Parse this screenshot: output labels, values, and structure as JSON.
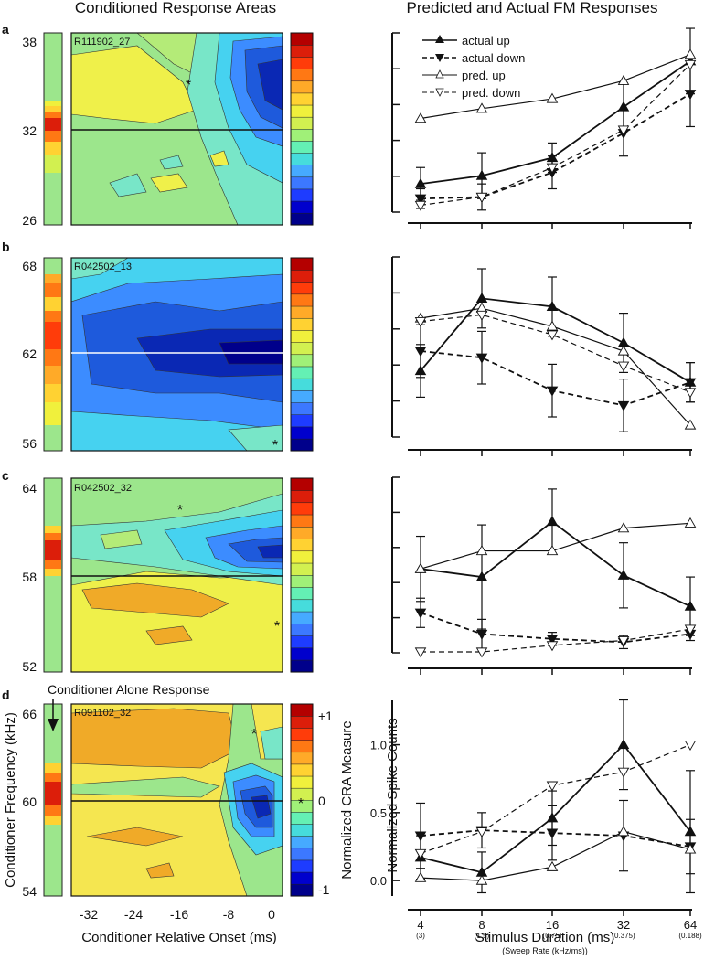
{
  "titles": {
    "left": "Conditioned Response Areas",
    "right": "Predicted and Actual FM Responses"
  },
  "colors": {
    "cmap": [
      "#00008b",
      "#0000cd",
      "#1e3cff",
      "#3c78ff",
      "#46aaff",
      "#46dcdc",
      "#64f0b4",
      "#a0f078",
      "#d2f050",
      "#f0f03c",
      "#ffd232",
      "#ffaa28",
      "#ff7814",
      "#ff3c0a",
      "#dc1e0a",
      "#b40000"
    ],
    "fills": {
      "light_green": "#9ce68c",
      "aqua": "#78e6c8",
      "cyan": "#46d2f0",
      "blue": "#3c8cff",
      "blue2": "#1e5adc",
      "blue3": "#0a28b4",
      "yellow": "#eff04a",
      "yellow2": "#f5e650",
      "orange": "#f0aa28",
      "green2": "#b4eb78"
    }
  },
  "panels": [
    {
      "letter": "a",
      "unit": "R111902_27",
      "y_ticks": [
        "38",
        "32",
        "26"
      ],
      "line": "32"
    },
    {
      "letter": "b",
      "unit": "R042502_13",
      "y_ticks": [
        "68",
        "62",
        "56"
      ],
      "line": "62"
    },
    {
      "letter": "c",
      "unit": "R042502_32",
      "y_ticks": [
        "64",
        "58",
        "52"
      ],
      "line": "58"
    },
    {
      "letter": "d",
      "unit": "R091102_32",
      "y_ticks": [
        "66",
        "60",
        "54"
      ],
      "line": "60"
    }
  ],
  "panel_d": {
    "annotation": "Conditioner Alone Response",
    "ylabel": "Conditioner Frequency (kHz)",
    "xlabel": "Conditioner Relative Onset (ms)",
    "x_ticks": [
      "-32",
      "-24",
      "-16",
      "-8",
      "0"
    ],
    "cbar_label": "Normalized CRA Measure",
    "cbar_ticks": [
      "+1",
      "0",
      "-1"
    ],
    "asterisk": "*"
  },
  "legend": {
    "entries": [
      "actual up",
      "actual down",
      "pred. up",
      "pred. down"
    ]
  },
  "chart_data": [
    {
      "type": "line",
      "panel": "a",
      "title": "Predicted and Actual FM Responses",
      "x": [
        4,
        8,
        16,
        32,
        64
      ],
      "ylim": [
        0,
        1.05
      ],
      "series": [
        {
          "name": "actual up",
          "values": [
            0.15,
            0.2,
            0.31,
            0.62,
            0.9
          ],
          "err": [
            0.1,
            0.14,
            0.09,
            0.14,
            0.2
          ]
        },
        {
          "name": "actual down",
          "values": [
            0.06,
            0.07,
            0.22,
            0.46,
            0.7
          ],
          "err": [
            0.06,
            0.08,
            0.1,
            0.14,
            0.2
          ]
        },
        {
          "name": "pred. up",
          "values": [
            0.55,
            0.61,
            0.67,
            0.78,
            0.94
          ],
          "err": [
            0,
            0,
            0,
            0,
            0
          ]
        },
        {
          "name": "pred. down",
          "values": [
            0.02,
            0.07,
            0.25,
            0.48,
            0.88
          ],
          "err": [
            0,
            0,
            0,
            0,
            0
          ]
        }
      ]
    },
    {
      "type": "line",
      "panel": "b",
      "x": [
        4,
        8,
        16,
        32,
        64
      ],
      "ylim": [
        0,
        1.05
      ],
      "series": [
        {
          "name": "actual up",
          "values": [
            0.38,
            0.82,
            0.77,
            0.55,
            0.31
          ],
          "err": [
            0.16,
            0.18,
            0.18,
            0.18,
            0.12
          ]
        },
        {
          "name": "actual down",
          "values": [
            0.5,
            0.46,
            0.26,
            0.17,
            0.31
          ],
          "err": [
            0.16,
            0.16,
            0.16,
            0.16,
            0.12
          ]
        },
        {
          "name": "pred. up",
          "values": [
            0.7,
            0.76,
            0.65,
            0.5,
            0.05
          ],
          "err": [
            0,
            0,
            0,
            0,
            0
          ]
        },
        {
          "name": "pred. down",
          "values": [
            0.68,
            0.72,
            0.6,
            0.41,
            0.25
          ],
          "err": [
            0,
            0,
            0,
            0,
            0
          ]
        }
      ]
    },
    {
      "type": "line",
      "panel": "c",
      "x": [
        4,
        8,
        16,
        32,
        64
      ],
      "ylim": [
        0,
        1.05
      ],
      "series": [
        {
          "name": "actual up",
          "values": [
            0.51,
            0.46,
            0.8,
            0.47,
            0.28
          ],
          "err": [
            0.2,
            0.32,
            0.2,
            0.2,
            0.18
          ]
        },
        {
          "name": "actual down",
          "values": [
            0.24,
            0.11,
            0.08,
            0.06,
            0.11
          ],
          "err": [
            0.09,
            0.09,
            0.04,
            0.04,
            0.04
          ]
        },
        {
          "name": "pred. up",
          "values": [
            0.51,
            0.62,
            0.62,
            0.76,
            0.79
          ],
          "err": [
            0,
            0,
            0,
            0,
            0
          ]
        },
        {
          "name": "pred. down",
          "values": [
            0,
            0,
            0.04,
            0.07,
            0.14
          ],
          "err": [
            0,
            0,
            0,
            0,
            0
          ]
        }
      ]
    },
    {
      "type": "line",
      "panel": "d",
      "xlabel": "Stimulus Duration (ms)",
      "xlabel2": "(Sweep Rate (kHz/ms))",
      "ylabel": "Normalized Spike Counts",
      "x": [
        4,
        8,
        16,
        32,
        64
      ],
      "x_tick_labels": [
        "4",
        "8",
        "16",
        "32",
        "64"
      ],
      "x_sub_labels": [
        "(3)",
        "(1.5)",
        "(0.75)",
        "(0.375)",
        "(0.188)"
      ],
      "y_ticks": [
        0.0,
        0.5,
        1.0
      ],
      "y_tick_labels": [
        "0.0",
        "0.5",
        "1.0"
      ],
      "ylim": [
        -0.08,
        1.3
      ],
      "series": [
        {
          "name": "actual up",
          "values": [
            0.17,
            0.06,
            0.46,
            1.0,
            0.36
          ],
          "err": [
            0.16,
            0.15,
            0.2,
            0.33,
            0.45
          ]
        },
        {
          "name": "actual down",
          "values": [
            0.33,
            0.37,
            0.35,
            0.33,
            0.25
          ],
          "err": [
            0.24,
            0.13,
            0.2,
            0.26,
            0.2
          ]
        },
        {
          "name": "pred. up",
          "values": [
            0.02,
            0.0,
            0.1,
            0.36,
            0.23
          ],
          "err": [
            0,
            0,
            0,
            0,
            0
          ]
        },
        {
          "name": "pred. down",
          "values": [
            0.2,
            0.36,
            0.7,
            0.8,
            1.0
          ],
          "err": [
            0,
            0,
            0,
            0,
            0
          ]
        }
      ]
    }
  ]
}
